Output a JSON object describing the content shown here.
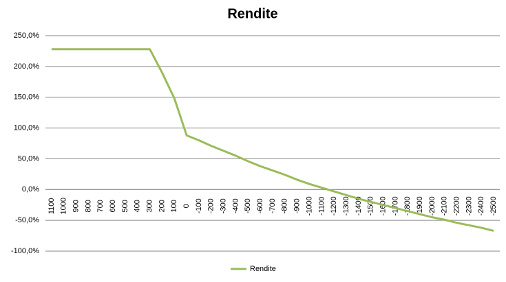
{
  "chart_data": {
    "type": "line",
    "title": "Rendite",
    "categories": [
      "1100",
      "1000",
      "900",
      "800",
      "700",
      "600",
      "500",
      "400",
      "300",
      "200",
      "100",
      "0",
      "-100",
      "-200",
      "-300",
      "-400",
      "-500",
      "-600",
      "-700",
      "-800",
      "-900",
      "-1000",
      "-1100",
      "-1200",
      "-1300",
      "-1400",
      "-1500",
      "-1600",
      "-1700",
      "-1800",
      "-1900",
      "-2000",
      "-2100",
      "-2200",
      "-2300",
      "-2400",
      "-2500"
    ],
    "series": [
      {
        "name": "Rendite",
        "color": "#9bbb59",
        "values": [
          228,
          228,
          228,
          228,
          228,
          228,
          228,
          228,
          228,
          190,
          148,
          88,
          80,
          71,
          63,
          55,
          46,
          38,
          31,
          24,
          16,
          9,
          3,
          -3,
          -9,
          -15,
          -20,
          -25,
          -30,
          -35,
          -40,
          -45,
          -49,
          -54,
          -58,
          -62,
          -67
        ]
      }
    ],
    "ylim": [
      -100,
      250
    ],
    "yticks": [
      {
        "value": -100,
        "label": "-100,0%"
      },
      {
        "value": -50,
        "label": "-50,0%"
      },
      {
        "value": 0,
        "label": "0,0%"
      },
      {
        "value": 50,
        "label": "50,0%"
      },
      {
        "value": 100,
        "label": "100,0%"
      },
      {
        "value": 150,
        "label": "150,0%"
      },
      {
        "value": 200,
        "label": "200,0%"
      },
      {
        "value": 250,
        "label": "250,0%"
      }
    ],
    "grid": true,
    "legend": "bottom"
  }
}
